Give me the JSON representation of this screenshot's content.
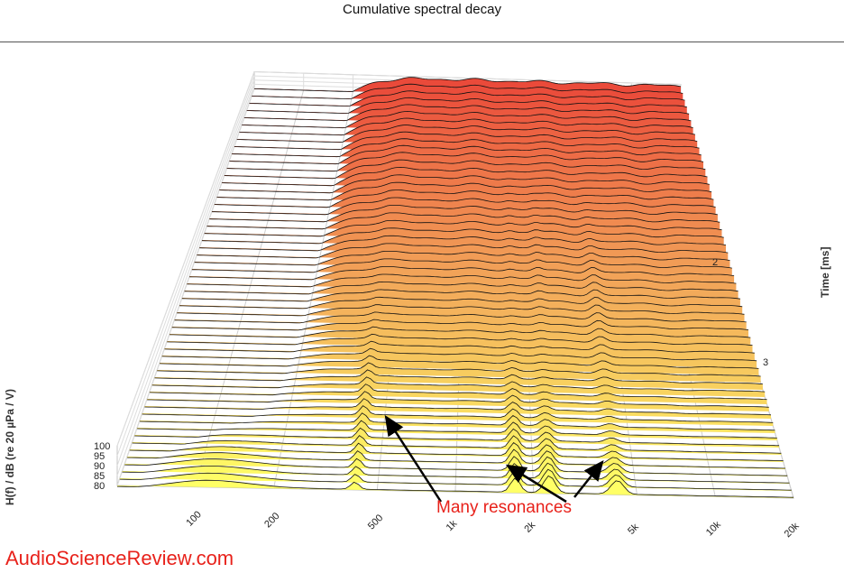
{
  "title": "Cumulative spectral decay",
  "brand": "AudioScienceReview.com",
  "annotation": "Many resonances",
  "colors": {
    "back": "#ea4a3a",
    "mid": "#f2a85a",
    "front": "#ffff66",
    "annotation": "#e8221b"
  },
  "chart_data": {
    "type": "area",
    "title": "Cumulative spectral decay",
    "xlabel": "",
    "ylabel": "H(f) / dB (re 20 µPa / V)",
    "tlabel": "Time [ms]",
    "x_scale": "log",
    "xlim": [
      50,
      20000
    ],
    "ylim": [
      80,
      100
    ],
    "x_ticks": [
      {
        "value": 100,
        "label": "100"
      },
      {
        "value": 200,
        "label": "200"
      },
      {
        "value": 500,
        "label": "500"
      },
      {
        "value": 1000,
        "label": "1k"
      },
      {
        "value": 2000,
        "label": "2k"
      },
      {
        "value": 5000,
        "label": "5k"
      },
      {
        "value": 10000,
        "label": "10k"
      },
      {
        "value": 20000,
        "label": "20k"
      }
    ],
    "y_ticks": [
      {
        "value": 80,
        "label": "80"
      },
      {
        "value": 85,
        "label": "85"
      },
      {
        "value": 90,
        "label": "90"
      },
      {
        "value": 95,
        "label": "95"
      },
      {
        "value": 100,
        "label": "100"
      }
    ],
    "t_ticks": [
      {
        "value": 2,
        "label": "2"
      },
      {
        "value": 3,
        "label": "3"
      }
    ],
    "slices": 56,
    "resonances_hz": [
      410,
      1700,
      2300,
      4200
    ],
    "grid": true,
    "legend": "none"
  }
}
